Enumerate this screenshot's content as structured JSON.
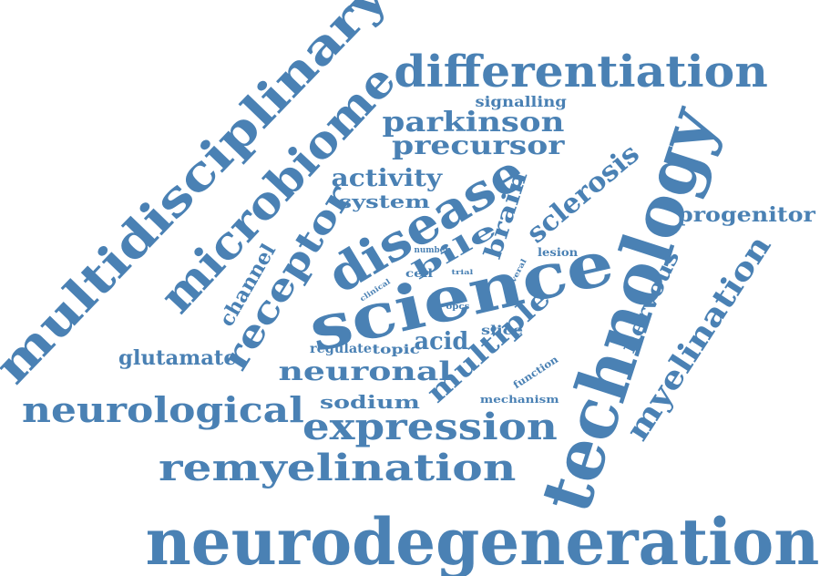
{
  "color": "#4a81b4",
  "words": [
    "neurodegeneration",
    "technology",
    "science",
    "multidisciplinary",
    "differentiation",
    "microbiome",
    "disease",
    "remyelination",
    "expression",
    "neurological",
    "receptor",
    "myelination",
    "parkinson",
    "precursor",
    "multiple",
    "neuronal",
    "sclerosis",
    "activity",
    "progenitor",
    "brain",
    "bile",
    "acid",
    "nervous",
    "glutamate",
    "channel",
    "system",
    "sodium",
    "signalling",
    "slice",
    "topic",
    "regulate",
    "lesion",
    "function",
    "mechanism",
    "cell",
    "opcs",
    "number",
    "clinical",
    "several",
    "trial"
  ]
}
